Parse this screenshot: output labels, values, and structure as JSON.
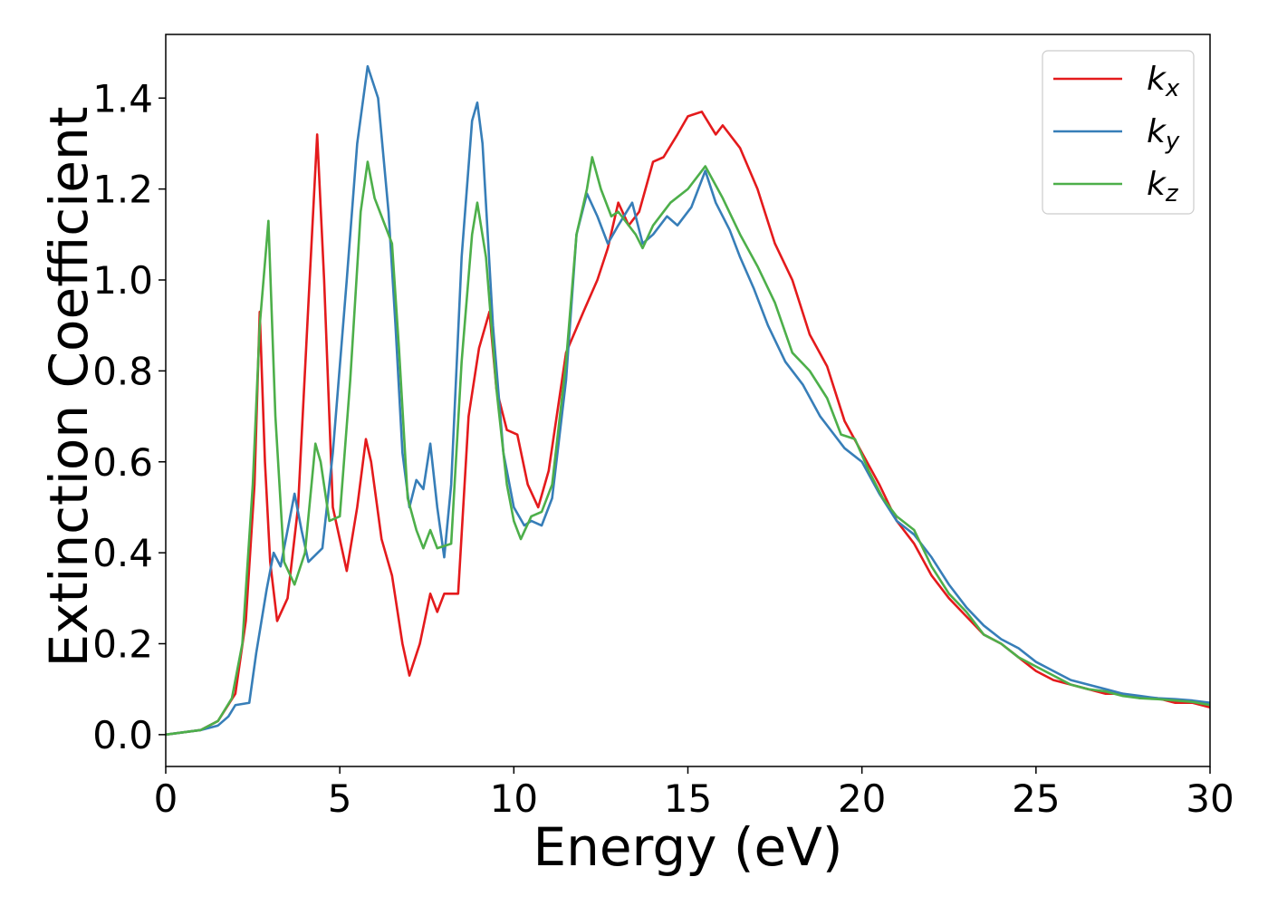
{
  "chart_data": {
    "type": "line",
    "title": "",
    "xlabel": "Energy (eV)",
    "ylabel": "Extinction Coefficient",
    "xlim": [
      0,
      30
    ],
    "ylim": [
      -0.07,
      1.54
    ],
    "xticks": [
      "0",
      "5",
      "10",
      "15",
      "20",
      "25",
      "30"
    ],
    "yticks": [
      "0.0",
      "0.2",
      "0.4",
      "0.6",
      "0.8",
      "1.0",
      "1.2",
      "1.4"
    ],
    "grid": false,
    "legend_position": "top-right",
    "series": [
      {
        "name": "kx",
        "label_base": "k",
        "label_sub": "x",
        "color": "#e41a1c",
        "points": [
          [
            0,
            0
          ],
          [
            1,
            0.01
          ],
          [
            1.5,
            0.03
          ],
          [
            2,
            0.09
          ],
          [
            2.3,
            0.25
          ],
          [
            2.55,
            0.55
          ],
          [
            2.7,
            0.93
          ],
          [
            2.85,
            0.6
          ],
          [
            3,
            0.38
          ],
          [
            3.2,
            0.25
          ],
          [
            3.5,
            0.3
          ],
          [
            3.8,
            0.5
          ],
          [
            4.1,
            0.95
          ],
          [
            4.35,
            1.32
          ],
          [
            4.55,
            1.0
          ],
          [
            4.8,
            0.5
          ],
          [
            5.2,
            0.36
          ],
          [
            5.5,
            0.5
          ],
          [
            5.75,
            0.65
          ],
          [
            5.9,
            0.6
          ],
          [
            6.2,
            0.43
          ],
          [
            6.5,
            0.35
          ],
          [
            6.8,
            0.2
          ],
          [
            7,
            0.13
          ],
          [
            7.3,
            0.2
          ],
          [
            7.6,
            0.31
          ],
          [
            7.8,
            0.27
          ],
          [
            8,
            0.31
          ],
          [
            8.4,
            0.31
          ],
          [
            8.7,
            0.7
          ],
          [
            9,
            0.85
          ],
          [
            9.3,
            0.93
          ],
          [
            9.5,
            0.76
          ],
          [
            9.8,
            0.67
          ],
          [
            10.1,
            0.66
          ],
          [
            10.4,
            0.55
          ],
          [
            10.7,
            0.5
          ],
          [
            11,
            0.58
          ],
          [
            11.5,
            0.84
          ],
          [
            12,
            0.93
          ],
          [
            12.4,
            1.0
          ],
          [
            12.7,
            1.07
          ],
          [
            13,
            1.17
          ],
          [
            13.3,
            1.12
          ],
          [
            13.6,
            1.15
          ],
          [
            14,
            1.26
          ],
          [
            14.3,
            1.27
          ],
          [
            14.7,
            1.32
          ],
          [
            15,
            1.36
          ],
          [
            15.4,
            1.37
          ],
          [
            15.8,
            1.32
          ],
          [
            16,
            1.34
          ],
          [
            16.5,
            1.29
          ],
          [
            17,
            1.2
          ],
          [
            17.5,
            1.08
          ],
          [
            18,
            1.0
          ],
          [
            18.5,
            0.88
          ],
          [
            19,
            0.81
          ],
          [
            19.5,
            0.69
          ],
          [
            20,
            0.62
          ],
          [
            20.5,
            0.55
          ],
          [
            21,
            0.47
          ],
          [
            21.5,
            0.42
          ],
          [
            22,
            0.35
          ],
          [
            22.5,
            0.3
          ],
          [
            23,
            0.26
          ],
          [
            23.5,
            0.22
          ],
          [
            24,
            0.2
          ],
          [
            24.5,
            0.17
          ],
          [
            25,
            0.14
          ],
          [
            25.5,
            0.12
          ],
          [
            26,
            0.11
          ],
          [
            26.5,
            0.1
          ],
          [
            27,
            0.09
          ],
          [
            27.5,
            0.09
          ],
          [
            28,
            0.08
          ],
          [
            28.5,
            0.08
          ],
          [
            29,
            0.07
          ],
          [
            29.5,
            0.07
          ],
          [
            30,
            0.06
          ]
        ]
      },
      {
        "name": "ky",
        "label_base": "k",
        "label_sub": "y",
        "color": "#377eb8",
        "points": [
          [
            0,
            0
          ],
          [
            1,
            0.01
          ],
          [
            1.5,
            0.02
          ],
          [
            1.8,
            0.04
          ],
          [
            2,
            0.065
          ],
          [
            2.4,
            0.07
          ],
          [
            2.6,
            0.18
          ],
          [
            2.9,
            0.32
          ],
          [
            3.1,
            0.4
          ],
          [
            3.3,
            0.37
          ],
          [
            3.5,
            0.45
          ],
          [
            3.7,
            0.53
          ],
          [
            3.9,
            0.45
          ],
          [
            4.1,
            0.38
          ],
          [
            4.5,
            0.41
          ],
          [
            4.8,
            0.62
          ],
          [
            5.2,
            1.0
          ],
          [
            5.5,
            1.3
          ],
          [
            5.8,
            1.47
          ],
          [
            6.1,
            1.4
          ],
          [
            6.4,
            1.15
          ],
          [
            6.6,
            0.9
          ],
          [
            6.8,
            0.62
          ],
          [
            7,
            0.5
          ],
          [
            7.2,
            0.56
          ],
          [
            7.4,
            0.54
          ],
          [
            7.6,
            0.64
          ],
          [
            7.8,
            0.5
          ],
          [
            8,
            0.39
          ],
          [
            8.2,
            0.55
          ],
          [
            8.5,
            1.05
          ],
          [
            8.8,
            1.35
          ],
          [
            8.95,
            1.39
          ],
          [
            9.1,
            1.3
          ],
          [
            9.4,
            0.9
          ],
          [
            9.7,
            0.62
          ],
          [
            10,
            0.5
          ],
          [
            10.3,
            0.46
          ],
          [
            10.5,
            0.47
          ],
          [
            10.8,
            0.46
          ],
          [
            11.1,
            0.52
          ],
          [
            11.5,
            0.78
          ],
          [
            11.8,
            1.1
          ],
          [
            12.1,
            1.19
          ],
          [
            12.4,
            1.14
          ],
          [
            12.7,
            1.08
          ],
          [
            13,
            1.12
          ],
          [
            13.4,
            1.17
          ],
          [
            13.7,
            1.08
          ],
          [
            14,
            1.1
          ],
          [
            14.4,
            1.14
          ],
          [
            14.7,
            1.12
          ],
          [
            15.1,
            1.16
          ],
          [
            15.5,
            1.24
          ],
          [
            15.8,
            1.17
          ],
          [
            16.2,
            1.11
          ],
          [
            16.5,
            1.05
          ],
          [
            16.9,
            0.98
          ],
          [
            17.3,
            0.9
          ],
          [
            17.8,
            0.82
          ],
          [
            18.3,
            0.77
          ],
          [
            18.8,
            0.7
          ],
          [
            19.2,
            0.66
          ],
          [
            19.5,
            0.63
          ],
          [
            20,
            0.6
          ],
          [
            20.5,
            0.53
          ],
          [
            21,
            0.47
          ],
          [
            21.5,
            0.44
          ],
          [
            22,
            0.39
          ],
          [
            22.5,
            0.33
          ],
          [
            23,
            0.28
          ],
          [
            23.5,
            0.24
          ],
          [
            24,
            0.21
          ],
          [
            24.5,
            0.19
          ],
          [
            25,
            0.16
          ],
          [
            25.5,
            0.14
          ],
          [
            26,
            0.12
          ],
          [
            26.5,
            0.11
          ],
          [
            27,
            0.1
          ],
          [
            27.5,
            0.09
          ],
          [
            28,
            0.085
          ],
          [
            28.5,
            0.08
          ],
          [
            29,
            0.078
          ],
          [
            29.5,
            0.075
          ],
          [
            30,
            0.07
          ]
        ]
      },
      {
        "name": "kz",
        "label_base": "k",
        "label_sub": "z",
        "color": "#4daf4a",
        "points": [
          [
            0,
            0
          ],
          [
            1,
            0.01
          ],
          [
            1.5,
            0.03
          ],
          [
            1.9,
            0.08
          ],
          [
            2.2,
            0.2
          ],
          [
            2.5,
            0.55
          ],
          [
            2.7,
            0.9
          ],
          [
            2.95,
            1.13
          ],
          [
            3.15,
            0.7
          ],
          [
            3.4,
            0.38
          ],
          [
            3.7,
            0.33
          ],
          [
            4,
            0.4
          ],
          [
            4.3,
            0.64
          ],
          [
            4.45,
            0.6
          ],
          [
            4.7,
            0.47
          ],
          [
            5,
            0.48
          ],
          [
            5.3,
            0.78
          ],
          [
            5.6,
            1.15
          ],
          [
            5.8,
            1.26
          ],
          [
            6,
            1.18
          ],
          [
            6.2,
            1.14
          ],
          [
            6.5,
            1.08
          ],
          [
            6.7,
            0.85
          ],
          [
            6.95,
            0.52
          ],
          [
            7.2,
            0.45
          ],
          [
            7.4,
            0.41
          ],
          [
            7.6,
            0.45
          ],
          [
            7.8,
            0.41
          ],
          [
            8.2,
            0.42
          ],
          [
            8.5,
            0.82
          ],
          [
            8.8,
            1.1
          ],
          [
            8.95,
            1.17
          ],
          [
            9.2,
            1.05
          ],
          [
            9.5,
            0.76
          ],
          [
            9.8,
            0.55
          ],
          [
            10,
            0.47
          ],
          [
            10.2,
            0.43
          ],
          [
            10.5,
            0.48
          ],
          [
            10.8,
            0.49
          ],
          [
            11.1,
            0.55
          ],
          [
            11.5,
            0.82
          ],
          [
            11.8,
            1.1
          ],
          [
            12.1,
            1.2
          ],
          [
            12.25,
            1.27
          ],
          [
            12.5,
            1.2
          ],
          [
            12.8,
            1.14
          ],
          [
            13,
            1.15
          ],
          [
            13.5,
            1.1
          ],
          [
            13.7,
            1.07
          ],
          [
            14,
            1.12
          ],
          [
            14.5,
            1.17
          ],
          [
            15,
            1.2
          ],
          [
            15.5,
            1.25
          ],
          [
            16,
            1.18
          ],
          [
            16.5,
            1.1
          ],
          [
            17,
            1.03
          ],
          [
            17.5,
            0.95
          ],
          [
            18,
            0.84
          ],
          [
            18.5,
            0.8
          ],
          [
            19,
            0.74
          ],
          [
            19.4,
            0.66
          ],
          [
            19.8,
            0.65
          ],
          [
            20.2,
            0.58
          ],
          [
            20.6,
            0.52
          ],
          [
            21,
            0.48
          ],
          [
            21.5,
            0.45
          ],
          [
            22,
            0.37
          ],
          [
            22.5,
            0.31
          ],
          [
            23,
            0.27
          ],
          [
            23.5,
            0.22
          ],
          [
            24,
            0.2
          ],
          [
            24.5,
            0.17
          ],
          [
            25,
            0.15
          ],
          [
            25.5,
            0.13
          ],
          [
            26,
            0.11
          ],
          [
            26.5,
            0.1
          ],
          [
            27,
            0.095
          ],
          [
            27.5,
            0.085
          ],
          [
            28,
            0.08
          ],
          [
            28.5,
            0.078
          ],
          [
            29,
            0.075
          ],
          [
            29.5,
            0.072
          ],
          [
            30,
            0.065
          ]
        ]
      }
    ]
  }
}
